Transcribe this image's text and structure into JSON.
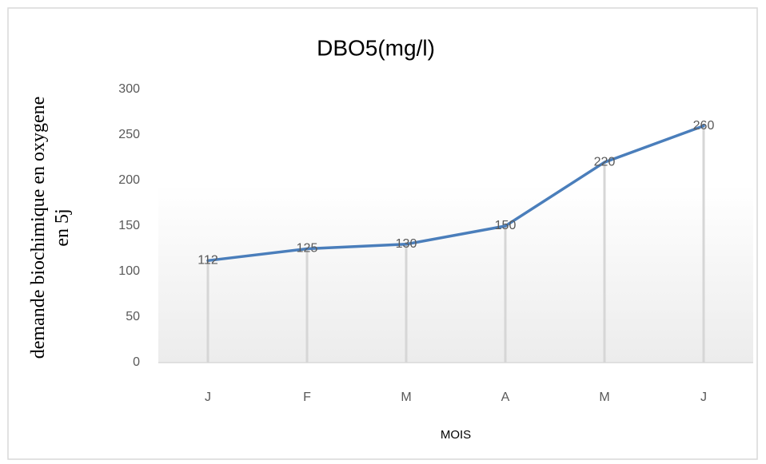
{
  "chart_data": {
    "type": "line",
    "title": "DBO5(mg/l)",
    "x_label": "MOIS",
    "y_label": "demande biochimique en oxygene en 5j",
    "categories": [
      "J",
      "F",
      "M",
      "A",
      "M",
      "J"
    ],
    "series": [
      {
        "name": "DBO5(mg/l)",
        "color": "#4a7ebb",
        "values": [
          112,
          125,
          130,
          150,
          220,
          260
        ]
      }
    ],
    "ylim": [
      0,
      300
    ],
    "yticks": [
      0,
      50,
      100,
      150,
      200,
      250,
      300
    ]
  }
}
